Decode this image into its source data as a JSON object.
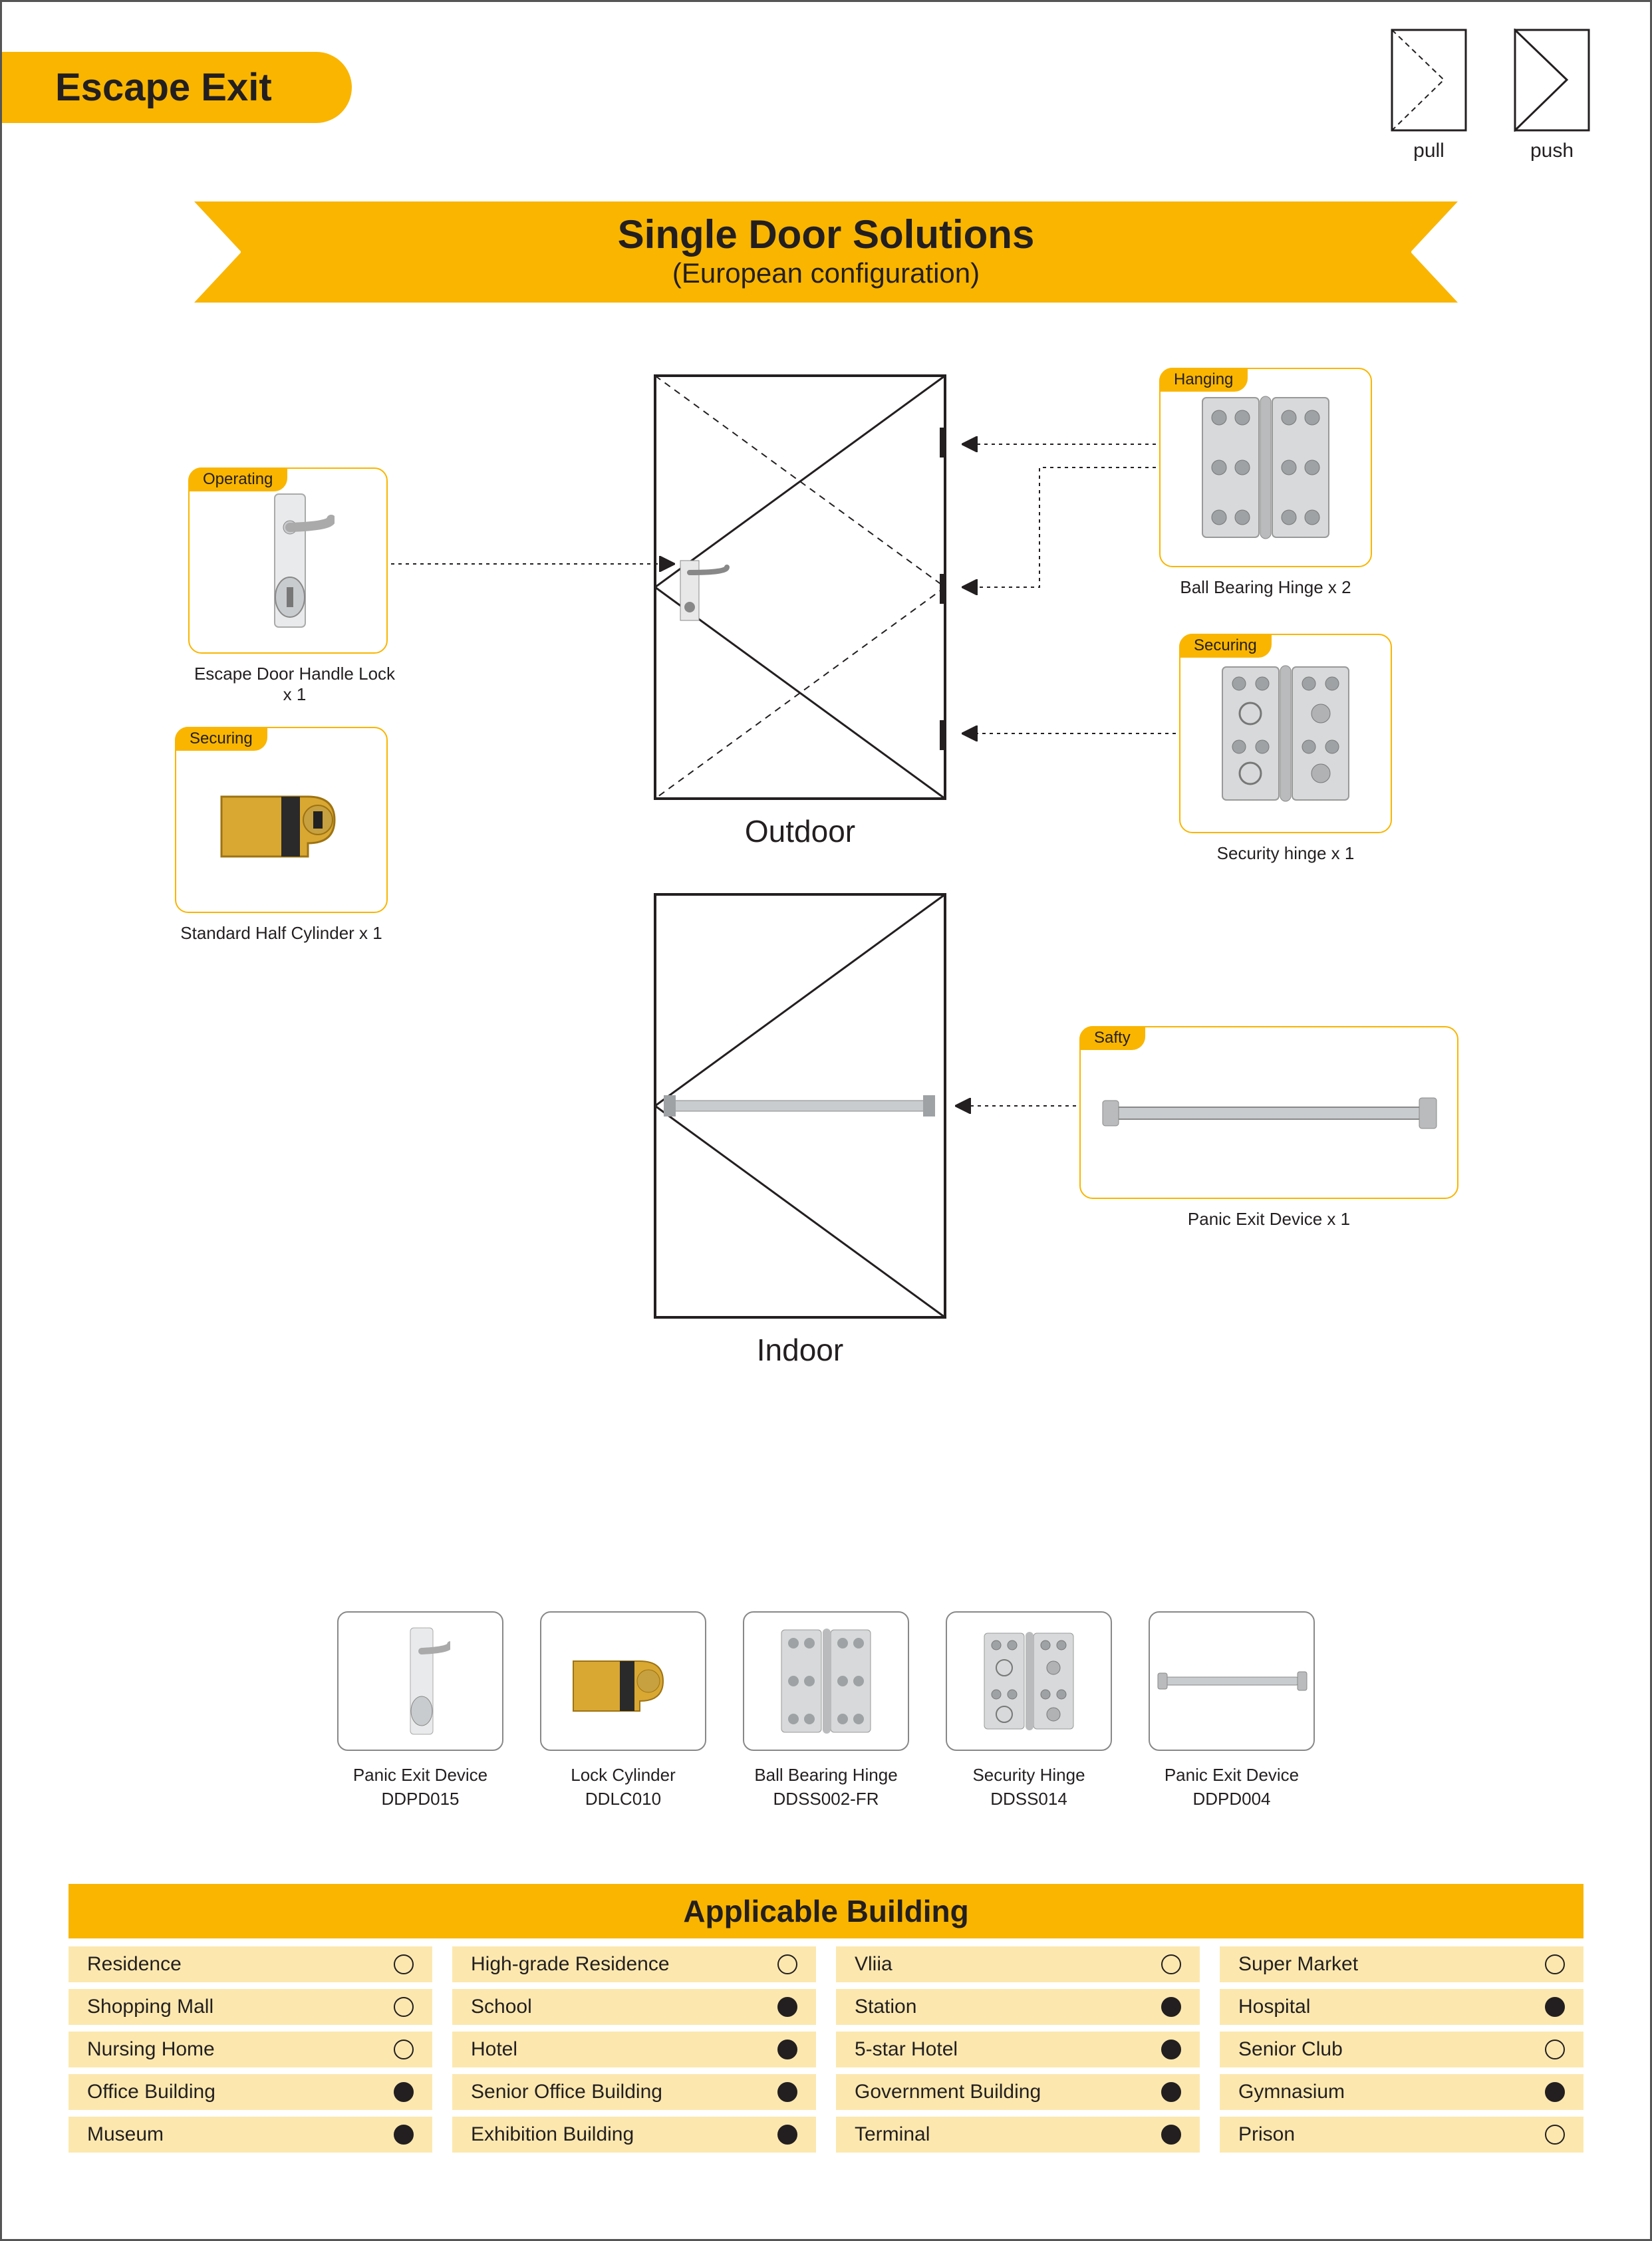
{
  "colors": {
    "accent": "#f9b500",
    "text": "#231f20",
    "border": "#555555",
    "cell_bg": "#fce8af",
    "silver": "#c9ccce",
    "silver_dark": "#9ea2a5",
    "brass": "#d9a833",
    "brass_dark": "#9e7312"
  },
  "page_title": "Escape Exit",
  "pull_push": {
    "pull": "pull",
    "push": "push"
  },
  "ribbon": {
    "title": "Single Door Solutions",
    "subtitle": "(European configuration)"
  },
  "doors": {
    "outdoor": "Outdoor",
    "indoor": "Indoor"
  },
  "components": {
    "operating": {
      "tag": "Operating",
      "caption": "Escape Door Handle Lock x 1"
    },
    "securing_cyl": {
      "tag": "Securing",
      "caption": "Standard Half Cylinder x 1"
    },
    "hanging": {
      "tag": "Hanging",
      "caption": "Ball Bearing Hinge x 2"
    },
    "securing_hinge": {
      "tag": "Securing",
      "caption": "Security hinge x 1"
    },
    "safety": {
      "tag": "Safty",
      "caption": "Panic  Exit  Device x 1"
    }
  },
  "products": [
    {
      "name": "Panic Exit Device",
      "code": "DDPD015",
      "icon": "handle"
    },
    {
      "name": "Lock Cylinder",
      "code": "DDLC010",
      "icon": "cylinder"
    },
    {
      "name": "Ball Bearing Hinge",
      "code": "DDSS002-FR",
      "icon": "hinge"
    },
    {
      "name": "Security Hinge",
      "code": "DDSS014",
      "icon": "sec-hinge"
    },
    {
      "name": "Panic Exit Device",
      "code": "DDPD004",
      "icon": "bar"
    }
  ],
  "applicable": {
    "header": "Applicable Building",
    "rows": [
      [
        {
          "label": "Residence",
          "on": false
        },
        {
          "label": "High-grade Residence",
          "on": false
        },
        {
          "label": "Vliia",
          "on": false
        },
        {
          "label": "Super Market",
          "on": false
        }
      ],
      [
        {
          "label": "Shopping Mall",
          "on": false
        },
        {
          "label": "School",
          "on": true
        },
        {
          "label": "Station",
          "on": true
        },
        {
          "label": "Hospital",
          "on": true
        }
      ],
      [
        {
          "label": "Nursing Home",
          "on": false
        },
        {
          "label": "Hotel",
          "on": true
        },
        {
          "label": "5-star Hotel",
          "on": true
        },
        {
          "label": "Senior Club",
          "on": false
        }
      ],
      [
        {
          "label": "Office Building",
          "on": true
        },
        {
          "label": "Senior Office Building",
          "on": true
        },
        {
          "label": "Government Building",
          "on": true
        },
        {
          "label": "Gymnasium",
          "on": true
        }
      ],
      [
        {
          "label": "Museum",
          "on": true
        },
        {
          "label": "Exhibition Building",
          "on": true
        },
        {
          "label": "Terminal",
          "on": true
        },
        {
          "label": "Prison",
          "on": false
        }
      ]
    ]
  }
}
